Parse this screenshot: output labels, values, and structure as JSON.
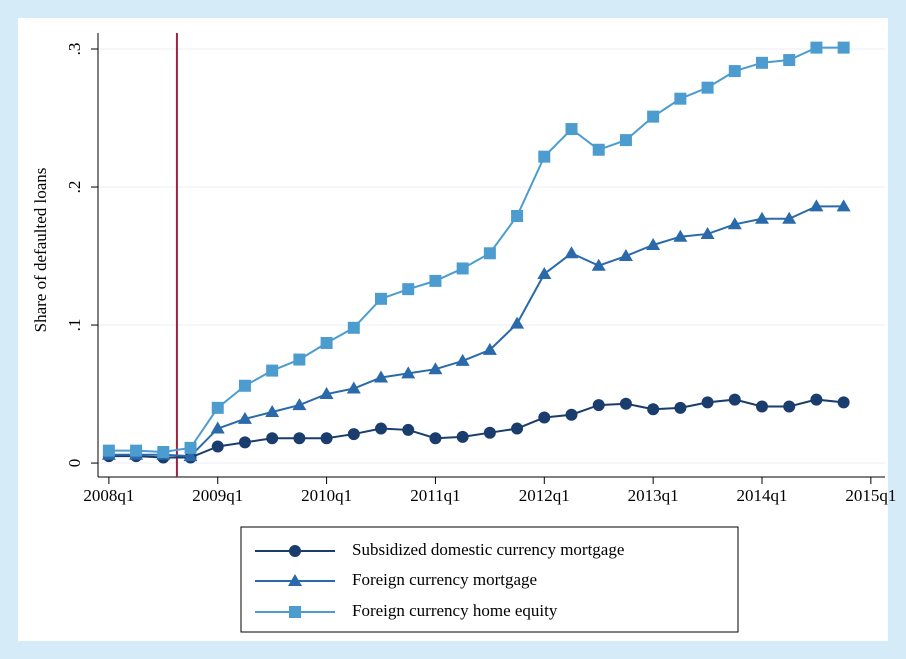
{
  "chart_data": {
    "type": "line",
    "y_label": "Share of defaulted loans",
    "x": [
      2008,
      2008.25,
      2008.5,
      2008.75,
      2009,
      2009.25,
      2009.5,
      2009.75,
      2010,
      2010.25,
      2010.5,
      2010.75,
      2011,
      2011.25,
      2011.5,
      2011.75,
      2012,
      2012.25,
      2012.5,
      2012.75,
      2013,
      2013.25,
      2013.5,
      2013.75,
      2014,
      2014.25,
      2014.5,
      2014.75
    ],
    "series": [
      {
        "name": "Subsidized domestic currency mortgage",
        "color": "#1a3d6d",
        "marker": "circle",
        "values": [
          0.005,
          0.005,
          0.004,
          0.004,
          0.012,
          0.015,
          0.018,
          0.018,
          0.018,
          0.021,
          0.025,
          0.024,
          0.018,
          0.019,
          0.022,
          0.025,
          0.033,
          0.035,
          0.042,
          0.043,
          0.039,
          0.04,
          0.044,
          0.046,
          0.041,
          0.041,
          0.046,
          0.044
        ]
      },
      {
        "name": "Foreign currency mortgage",
        "color": "#2a6aaa",
        "marker": "triangle",
        "values": [
          0.006,
          0.006,
          0.006,
          0.005,
          0.025,
          0.032,
          0.037,
          0.042,
          0.05,
          0.054,
          0.062,
          0.065,
          0.068,
          0.074,
          0.082,
          0.101,
          0.137,
          0.152,
          0.143,
          0.15,
          0.158,
          0.164,
          0.166,
          0.173,
          0.177,
          0.177,
          0.186,
          0.186
        ]
      },
      {
        "name": "Foreign currency home equity",
        "color": "#4c9ccf",
        "marker": "square",
        "values": [
          0.009,
          0.009,
          0.008,
          0.011,
          0.04,
          0.056,
          0.067,
          0.075,
          0.087,
          0.098,
          0.119,
          0.126,
          0.132,
          0.141,
          0.152,
          0.179,
          0.222,
          0.242,
          0.227,
          0.234,
          0.251,
          0.264,
          0.272,
          0.284,
          0.29,
          0.292,
          0.301,
          0.301
        ]
      }
    ],
    "xlim": [
      2007.9,
      2015.13
    ],
    "xticks": [
      {
        "value": 2008,
        "label": "2008q1"
      },
      {
        "value": 2009,
        "label": "2009q1"
      },
      {
        "value": 2010,
        "label": "2010q1"
      },
      {
        "value": 2011,
        "label": "2011q1"
      },
      {
        "value": 2012,
        "label": "2012q1"
      },
      {
        "value": 2013,
        "label": "2013q1"
      },
      {
        "value": 2014,
        "label": "2014q1"
      },
      {
        "value": 2015,
        "label": "2015q1"
      }
    ],
    "ylim": [
      -0.0101,
      0.3116
    ],
    "yticks": [
      0,
      {
        "value": 0.1,
        "label": ".1"
      },
      {
        "value": 0.2,
        "label": ".2"
      },
      {
        "value": 0.3,
        "label": ".3"
      }
    ],
    "grid": true,
    "vline": {
      "value": 2008.625,
      "color": "#a3203f"
    },
    "legend": "bottom"
  }
}
